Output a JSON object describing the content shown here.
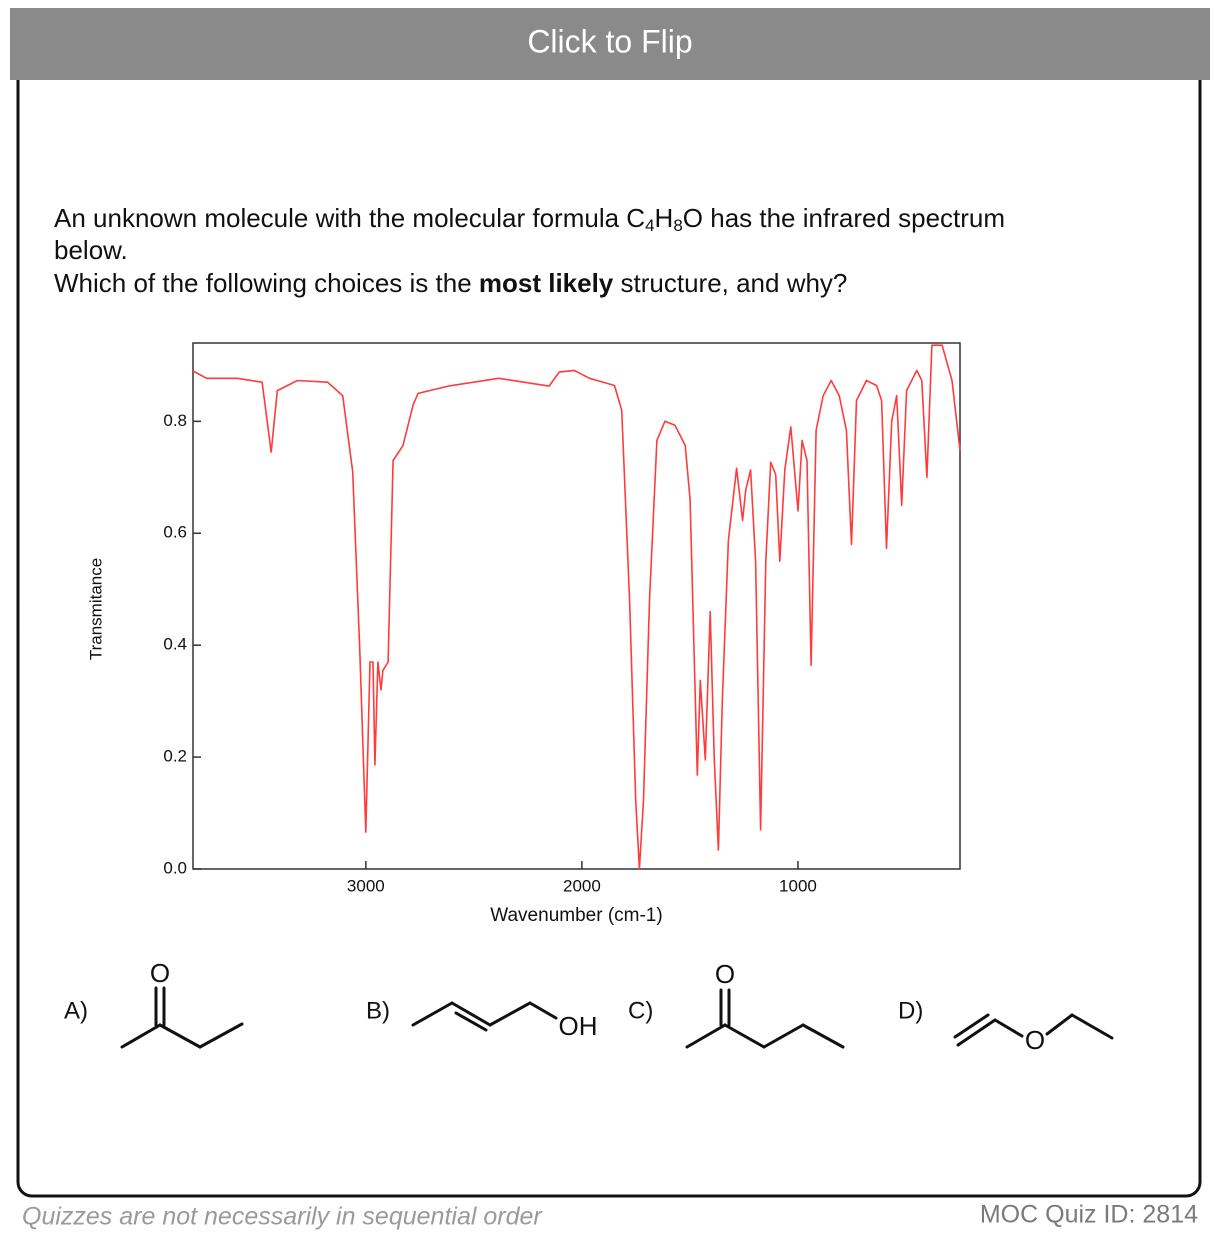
{
  "header": {
    "button": "Click to Flip"
  },
  "question": {
    "line1": [
      "An unknown molecule with the molecular formula C",
      "4",
      "H",
      "8",
      "O has the infrared spectrum"
    ],
    "line2": "below.",
    "line3": [
      "Which of the following choices is the ",
      "most likely",
      " structure, and why?"
    ]
  },
  "chart_data": {
    "type": "line",
    "xlabel": "Wavenumber (cm-1)",
    "ylabel": "Transmitance",
    "xlim": [
      3800,
      250
    ],
    "ylim": [
      0,
      0.94
    ],
    "xticks": [
      3000,
      2000,
      1000
    ],
    "yticks": [
      {
        "value": 0,
        "label": "0.0"
      },
      0.2,
      0.4,
      0.6,
      0.8
    ],
    "x": [
      3800,
      3737,
      3597,
      3480,
      3438,
      3410,
      3317,
      3177,
      3107,
      3061,
      3028,
      3000,
      2981,
      2967,
      2958,
      2944,
      2930,
      2921,
      2897,
      2874,
      2828,
      2781,
      2758,
      2618,
      2385,
      2152,
      2105,
      2035,
      1965,
      1849,
      1816,
      1779,
      1751,
      1734,
      1715,
      1687,
      1653,
      1616,
      1569,
      1522,
      1499,
      1466,
      1452,
      1429,
      1406,
      1387,
      1368,
      1350,
      1322,
      1284,
      1256,
      1242,
      1219,
      1196,
      1173,
      1149,
      1126,
      1103,
      1084,
      1061,
      1033,
      1000,
      981,
      958,
      939,
      916,
      883,
      846,
      809,
      776,
      752,
      729,
      683,
      636,
      613,
      590,
      566,
      543,
      520,
      497,
      450,
      427,
      403,
      380,
      333,
      287,
      250
    ],
    "series": [
      {
        "name": "Transmitance",
        "color": "#ff3b3b",
        "values": [
          0.89,
          0.877,
          0.877,
          0.87,
          0.745,
          0.855,
          0.873,
          0.87,
          0.846,
          0.71,
          0.39,
          0.066,
          0.37,
          0.37,
          0.186,
          0.37,
          0.32,
          0.355,
          0.37,
          0.73,
          0.757,
          0.83,
          0.85,
          0.863,
          0.877,
          0.863,
          0.888,
          0.891,
          0.877,
          0.864,
          0.82,
          0.48,
          0.123,
          0,
          0.123,
          0.48,
          0.766,
          0.8,
          0.793,
          0.757,
          0.66,
          0.168,
          0.337,
          0.195,
          0.46,
          0.195,
          0.034,
          0.3,
          0.587,
          0.716,
          0.623,
          0.677,
          0.713,
          0.55,
          0.07,
          0.55,
          0.727,
          0.705,
          0.55,
          0.713,
          0.79,
          0.64,
          0.766,
          0.73,
          0.364,
          0.784,
          0.846,
          0.873,
          0.846,
          0.784,
          0.58,
          0.837,
          0.873,
          0.864,
          0.837,
          0.573,
          0.8,
          0.846,
          0.65,
          0.855,
          0.891,
          0.873,
          0.7,
          0.936,
          0.936,
          0.873,
          0.748
        ]
      }
    ]
  },
  "choices": [
    {
      "label": "A)",
      "atoms": [
        "O"
      ]
    },
    {
      "label": "B)",
      "atoms": [
        "OH"
      ]
    },
    {
      "label": "C)",
      "atoms": [
        "O"
      ]
    },
    {
      "label": "D)",
      "atoms": [
        "O"
      ]
    }
  ],
  "footer": {
    "note": "Quizzes are not necessarily in sequential order",
    "quiz_id": "MOC Quiz ID: 2814"
  }
}
